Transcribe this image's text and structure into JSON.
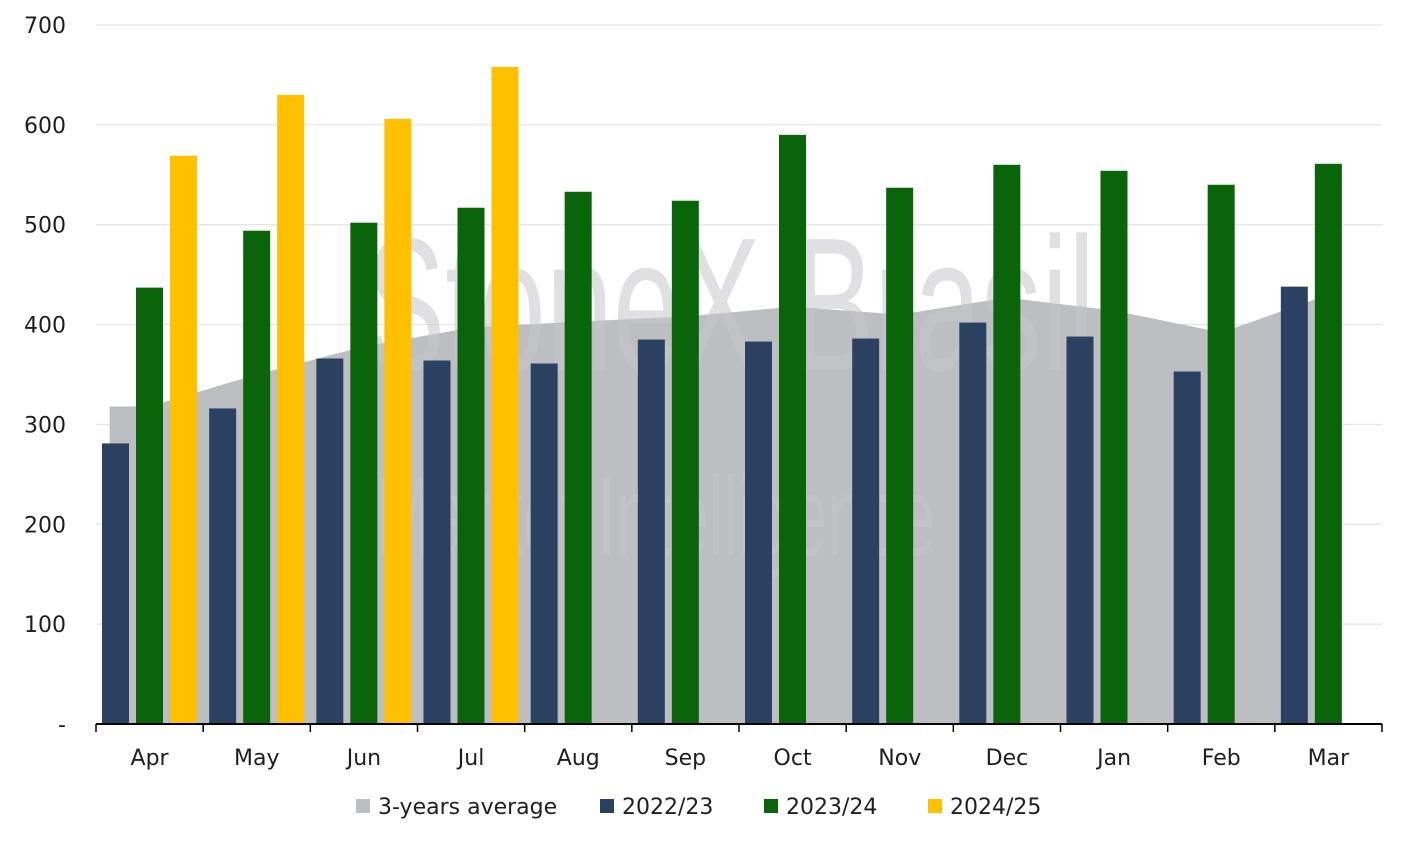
{
  "watermark": {
    "line1": "StoneX Brasil",
    "line2": "Market Intelligence"
  },
  "chart_data": {
    "type": "bar",
    "categories": [
      "Apr",
      "May",
      "Jun",
      "Jul",
      "Aug",
      "Sep",
      "Oct",
      "Nov",
      "Dec",
      "Jan",
      "Feb",
      "Mar"
    ],
    "y_ticks": [
      "-",
      "100",
      "200",
      "300",
      "400",
      "500",
      "600",
      "700"
    ],
    "ylim": [
      0,
      700
    ],
    "grid": true,
    "legend_position": "bottom",
    "area_series": {
      "name": "3-years average",
      "color": "#bcbec2",
      "values": [
        318,
        350,
        378,
        397,
        403,
        408,
        418,
        410,
        427,
        414,
        392,
        430
      ]
    },
    "series": [
      {
        "name": "2022/23",
        "color": "#2b4162",
        "values": [
          281,
          316,
          366,
          364,
          361,
          385,
          383,
          386,
          402,
          388,
          353,
          438
        ]
      },
      {
        "name": "2023/24",
        "color": "#0a650a",
        "values": [
          437,
          494,
          502,
          517,
          533,
          524,
          590,
          537,
          560,
          554,
          540,
          561
        ]
      },
      {
        "name": "2024/25",
        "color": "#ffc000",
        "values": [
          569,
          630,
          606,
          658,
          null,
          null,
          null,
          null,
          null,
          null,
          null,
          null
        ]
      }
    ]
  }
}
